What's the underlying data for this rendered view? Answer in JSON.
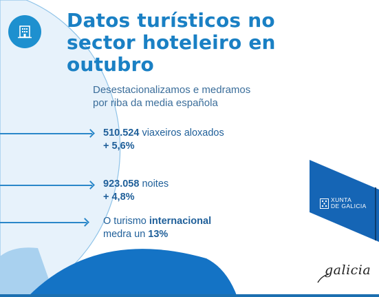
{
  "title_lines": [
    "Datos turísticos no",
    "sector hoteleiro en",
    "outubro"
  ],
  "subtitle_lines": [
    "Desestacionalizamos e medramos",
    "por riba da media española"
  ],
  "stats": [
    {
      "bold": "510.524",
      "text": " viaxeiros aloxados",
      "line2": "+ 5,6%"
    },
    {
      "bold": "923.058",
      "text": " noites",
      "line2": "+ 4,8%"
    },
    {
      "pre": "O turismo ",
      "bold": "internacional",
      "line2_pre": "medra un ",
      "line2_bold": "13%"
    }
  ],
  "xunta_logo": {
    "line1": "XUNTA",
    "line2": "DE GALICIA"
  },
  "galicia_logo": "galicia",
  "colors": {
    "primary": "#1a80c4",
    "text": "#1f5f99",
    "panel": "#1565b5"
  },
  "icons": {
    "badge": "hotel-building-icon"
  }
}
